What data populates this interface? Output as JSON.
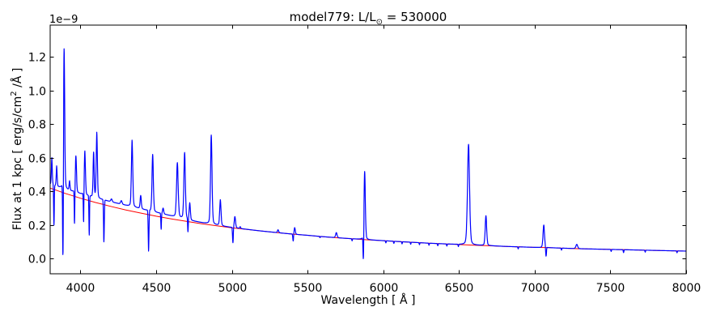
{
  "chart_data": {
    "type": "line",
    "title": "model779: L/L⊙ = 530000",
    "title_parts": {
      "prefix": "model779: L/L",
      "sub": "⊙",
      "suffix": " = 530000"
    },
    "xlabel": "Wavelength [ Å ]",
    "ylabel": "Flux at 1 kpc [ erg/s/cm² /Å ]",
    "ylabel_parts": {
      "prefix": "Flux at 1 kpc [ erg/s/cm",
      "sup": "2",
      "suffix": " /Å ]"
    },
    "y_offset_text": "1e−9",
    "flux_units": "1e-9 erg/s/cm2/Å",
    "xlim": [
      3800,
      8000
    ],
    "ylim": [
      -0.09,
      1.39
    ],
    "xticks": [
      4000,
      4500,
      5000,
      5500,
      6000,
      6500,
      7000,
      7500,
      8000
    ],
    "yticks": [
      0.0,
      0.2,
      0.4,
      0.6,
      0.8,
      1.0,
      1.2
    ],
    "grid": false,
    "legend": "none",
    "series": [
      {
        "name": "model spectrum",
        "color": "#0000ff",
        "style": "solid"
      },
      {
        "name": "continuum fit",
        "color": "#ff0000",
        "style": "solid"
      }
    ],
    "continuum_points": [
      [
        3800,
        0.42
      ],
      [
        3900,
        0.388
      ],
      [
        4000,
        0.36
      ],
      [
        4100,
        0.334
      ],
      [
        4200,
        0.311
      ],
      [
        4300,
        0.29
      ],
      [
        4400,
        0.271
      ],
      [
        4500,
        0.253
      ],
      [
        4600,
        0.237
      ],
      [
        4700,
        0.222
      ],
      [
        4800,
        0.208
      ],
      [
        4900,
        0.196
      ],
      [
        5000,
        0.184
      ],
      [
        5100,
        0.174
      ],
      [
        5200,
        0.164
      ],
      [
        5300,
        0.155
      ],
      [
        5400,
        0.146
      ],
      [
        5500,
        0.139
      ],
      [
        5600,
        0.131
      ],
      [
        5700,
        0.124
      ],
      [
        5800,
        0.118
      ],
      [
        5900,
        0.112
      ],
      [
        6000,
        0.107
      ],
      [
        6100,
        0.102
      ],
      [
        6200,
        0.097
      ],
      [
        6300,
        0.092
      ],
      [
        6400,
        0.088
      ],
      [
        6500,
        0.084
      ],
      [
        6600,
        0.08
      ],
      [
        6700,
        0.077
      ],
      [
        6800,
        0.073
      ],
      [
        6900,
        0.07
      ],
      [
        7000,
        0.067
      ],
      [
        7100,
        0.065
      ],
      [
        7200,
        0.062
      ],
      [
        7300,
        0.059
      ],
      [
        7400,
        0.057
      ],
      [
        7500,
        0.055
      ],
      [
        7600,
        0.053
      ],
      [
        7700,
        0.051
      ],
      [
        7800,
        0.049
      ],
      [
        7900,
        0.047
      ],
      [
        8000,
        0.045
      ]
    ],
    "nebular_excess_points": [
      [
        3800,
        0.022
      ],
      [
        3950,
        0.025
      ],
      [
        4150,
        0.028
      ],
      [
        4350,
        0.027
      ],
      [
        4550,
        0.02
      ],
      [
        4750,
        0.008
      ],
      [
        4950,
        0.002
      ],
      [
        5150,
        0.0
      ],
      [
        8000,
        0.0
      ]
    ],
    "emission_lines": {
      "columns": [
        "wavelength_A",
        "peak_flux_1e-9",
        "sigma_A"
      ],
      "rows": [
        [
          3811,
          0.6,
          3
        ],
        [
          3843,
          0.55,
          3
        ],
        [
          3892,
          1.26,
          4
        ],
        [
          3928,
          0.46,
          3
        ],
        [
          3970,
          0.61,
          4
        ],
        [
          4029,
          0.64,
          4
        ],
        [
          4087,
          0.63,
          3.5
        ],
        [
          4108,
          0.75,
          4
        ],
        [
          4205,
          0.355,
          5
        ],
        [
          4270,
          0.345,
          5
        ],
        [
          4341,
          0.705,
          4.5
        ],
        [
          4398,
          0.375,
          4
        ],
        [
          4477,
          0.62,
          4.5
        ],
        [
          4546,
          0.3,
          4
        ],
        [
          4640,
          0.57,
          5.5
        ],
        [
          4688,
          0.63,
          5
        ],
        [
          4722,
          0.33,
          4
        ],
        [
          4864,
          0.735,
          5
        ],
        [
          4924,
          0.35,
          4.5
        ],
        [
          5020,
          0.25,
          4.5
        ],
        [
          5055,
          0.19,
          3
        ],
        [
          5305,
          0.172,
          4
        ],
        [
          5415,
          0.185,
          4
        ],
        [
          5690,
          0.155,
          5
        ],
        [
          5877,
          0.52,
          4.5
        ],
        [
          6563,
          0.68,
          7
        ],
        [
          6678,
          0.255,
          5
        ],
        [
          7060,
          0.2,
          5
        ],
        [
          7278,
          0.085,
          6
        ]
      ]
    },
    "absorption_lines": {
      "columns": [
        "wavelength_A",
        "min_flux_1e-9",
        "sigma_A"
      ],
      "rows": [
        [
          3825,
          0.2,
          2
        ],
        [
          3885,
          0.04,
          2.5
        ],
        [
          3961,
          0.21,
          2
        ],
        [
          4021,
          0.22,
          2
        ],
        [
          4058,
          0.14,
          2
        ],
        [
          4155,
          0.1,
          2.5
        ],
        [
          4450,
          0.045,
          2.5
        ],
        [
          4533,
          0.175,
          2
        ],
        [
          4710,
          0.16,
          2
        ],
        [
          5007,
          0.095,
          2.5
        ],
        [
          5405,
          0.105,
          2.5
        ],
        [
          5582,
          0.125,
          2
        ],
        [
          5794,
          0.106,
          2
        ],
        [
          5869,
          0.01,
          2.5
        ],
        [
          6017,
          0.094,
          2
        ],
        [
          6070,
          0.091,
          2
        ],
        [
          6124,
          0.088,
          2
        ],
        [
          6181,
          0.086,
          2
        ],
        [
          6239,
          0.083,
          2
        ],
        [
          6302,
          0.08,
          2
        ],
        [
          6360,
          0.077,
          2
        ],
        [
          6420,
          0.075,
          2
        ],
        [
          6496,
          0.072,
          2
        ],
        [
          6891,
          0.058,
          2
        ],
        [
          7075,
          0.015,
          2.5
        ],
        [
          7177,
          0.051,
          2
        ],
        [
          7505,
          0.043,
          2
        ],
        [
          7587,
          0.036,
          2
        ],
        [
          7730,
          0.039,
          2
        ],
        [
          7940,
          0.035,
          2
        ]
      ]
    }
  },
  "colors": {
    "background": "#ffffff",
    "axes": "#000000",
    "text": "#000000"
  }
}
